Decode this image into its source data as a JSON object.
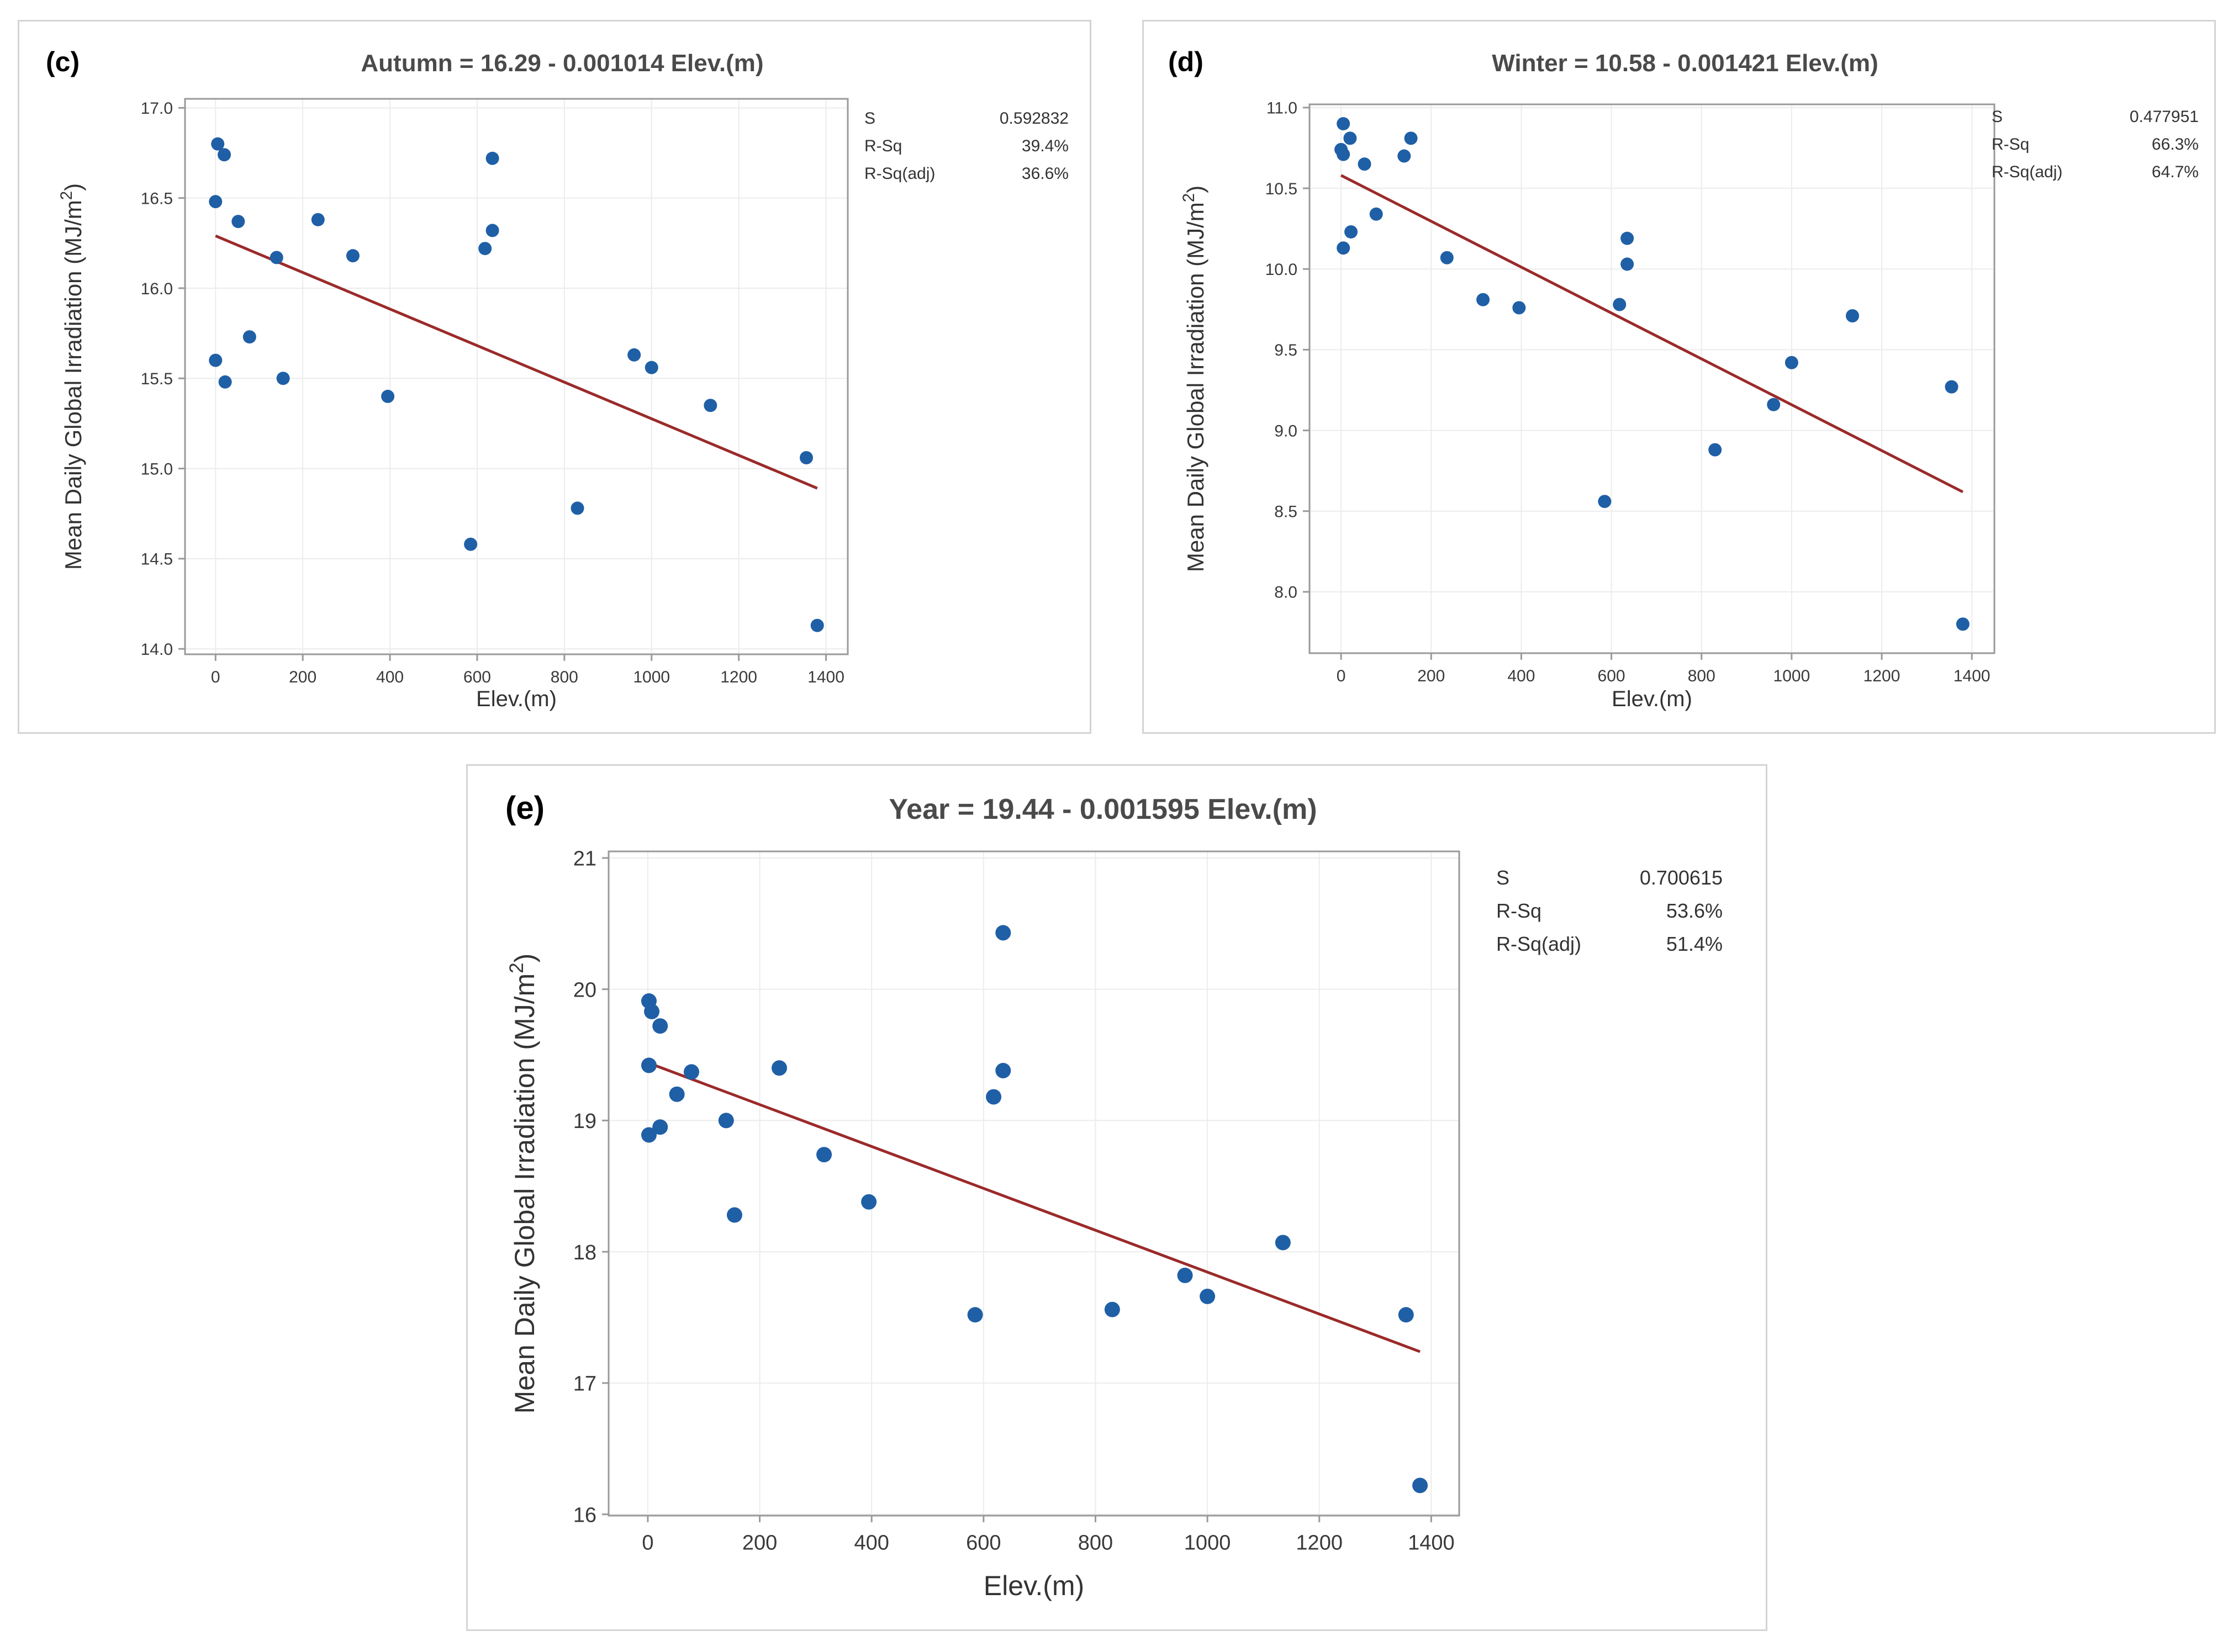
{
  "colors": {
    "point": "#1f5fa6",
    "fit_line": "#9b2a2a",
    "grid": "#ececec",
    "axis": "#9a9a9a"
  },
  "chart_data": [
    {
      "type": "scatter",
      "panel_label": "(c)",
      "title": "Autumn = 16.29 - 0.001014 Elev.(m)",
      "xlabel": "Elev.(m)",
      "ylabel": "Mean Daily Global Irradiation (MJ/m",
      "ylabel_sup": "2",
      "ylabel_end": ")",
      "xlim": [
        -70,
        1450
      ],
      "ylim": [
        13.97,
        17.05
      ],
      "xticks": [
        0,
        200,
        400,
        600,
        800,
        1000,
        1200,
        1400
      ],
      "yticks": [
        14.0,
        14.5,
        15.0,
        15.5,
        16.0,
        16.5,
        17.0
      ],
      "ytick_labels": [
        "14.0",
        "14.5",
        "15.0",
        "15.5",
        "16.0",
        "16.5",
        "17.0"
      ],
      "fit": {
        "intercept": 16.29,
        "slope": -0.001014,
        "x_range": [
          0,
          1380
        ]
      },
      "stats": [
        {
          "label": "S",
          "value": "0.592832"
        },
        {
          "label": "R-Sq",
          "value": "39.4%"
        },
        {
          "label": "R-Sq(adj)",
          "value": "36.6%"
        }
      ],
      "points": [
        [
          5,
          16.8
        ],
        [
          20,
          16.74
        ],
        [
          0,
          16.48
        ],
        [
          52,
          16.37
        ],
        [
          140,
          16.17
        ],
        [
          235,
          16.38
        ],
        [
          315,
          16.18
        ],
        [
          78,
          15.73
        ],
        [
          0,
          15.6
        ],
        [
          22,
          15.48
        ],
        [
          155,
          15.5
        ],
        [
          395,
          15.4
        ],
        [
          635,
          16.72
        ],
        [
          635,
          16.32
        ],
        [
          618,
          16.22
        ],
        [
          960,
          15.63
        ],
        [
          1000,
          15.56
        ],
        [
          1135,
          15.35
        ],
        [
          1355,
          15.06
        ],
        [
          830,
          14.78
        ],
        [
          585,
          14.58
        ],
        [
          1380,
          14.13
        ]
      ]
    },
    {
      "type": "scatter",
      "panel_label": "(d)",
      "title": "Winter = 10.58 - 0.001421 Elev.(m)",
      "xlabel": "Elev.(m)",
      "ylabel": "Mean Daily Global Irradiation (MJ/m",
      "ylabel_sup": "2",
      "ylabel_end": ")",
      "xlim": [
        -70,
        1450
      ],
      "ylim": [
        7.62,
        11.02
      ],
      "xticks": [
        0,
        200,
        400,
        600,
        800,
        1000,
        1200,
        1400
      ],
      "yticks": [
        8.0,
        8.5,
        9.0,
        9.5,
        10.0,
        10.5,
        11.0
      ],
      "ytick_labels": [
        "8.0",
        "8.5",
        "9.0",
        "9.5",
        "10.0",
        "10.5",
        "11.0"
      ],
      "fit": {
        "intercept": 10.58,
        "slope": -0.001421,
        "x_range": [
          0,
          1380
        ]
      },
      "stats": [
        {
          "label": "S",
          "value": "0.477951"
        },
        {
          "label": "R-Sq",
          "value": "66.3%"
        },
        {
          "label": "R-Sq(adj)",
          "value": "64.7%"
        }
      ],
      "points": [
        [
          5,
          10.9
        ],
        [
          20,
          10.81
        ],
        [
          0,
          10.74
        ],
        [
          5,
          10.71
        ],
        [
          52,
          10.65
        ],
        [
          140,
          10.7
        ],
        [
          155,
          10.81
        ],
        [
          78,
          10.34
        ],
        [
          22,
          10.23
        ],
        [
          5,
          10.13
        ],
        [
          235,
          10.07
        ],
        [
          315,
          9.81
        ],
        [
          395,
          9.76
        ],
        [
          635,
          10.19
        ],
        [
          635,
          10.03
        ],
        [
          618,
          9.78
        ],
        [
          585,
          8.56
        ],
        [
          830,
          8.88
        ],
        [
          960,
          9.16
        ],
        [
          1000,
          9.42
        ],
        [
          1135,
          9.71
        ],
        [
          1355,
          9.27
        ],
        [
          1380,
          7.8
        ]
      ]
    },
    {
      "type": "scatter",
      "panel_label": "(e)",
      "title": "Year = 19.44 - 0.001595 Elev.(m)",
      "xlabel": "Elev.(m)",
      "ylabel": "Mean Daily Global Irradiation (MJ/m",
      "ylabel_sup": "2",
      "ylabel_end": ")",
      "xlim": [
        -70,
        1450
      ],
      "ylim": [
        15.99,
        21.05
      ],
      "xticks": [
        0,
        200,
        400,
        600,
        800,
        1000,
        1200,
        1400
      ],
      "yticks": [
        16,
        17,
        18,
        19,
        20,
        21
      ],
      "ytick_labels": [
        "16",
        "17",
        "18",
        "19",
        "20",
        "21"
      ],
      "fit": {
        "intercept": 19.44,
        "slope": -0.001595,
        "x_range": [
          0,
          1380
        ]
      },
      "stats": [
        {
          "label": "S",
          "value": "0.700615"
        },
        {
          "label": "R-Sq",
          "value": "53.6%"
        },
        {
          "label": "R-Sq(adj)",
          "value": "51.4%"
        }
      ],
      "points": [
        [
          2,
          19.91
        ],
        [
          7,
          19.83
        ],
        [
          22,
          19.72
        ],
        [
          2,
          19.42
        ],
        [
          78,
          19.37
        ],
        [
          52,
          19.2
        ],
        [
          22,
          18.95
        ],
        [
          2,
          18.89
        ],
        [
          140,
          19.0
        ],
        [
          235,
          19.4
        ],
        [
          315,
          18.74
        ],
        [
          395,
          18.38
        ],
        [
          155,
          18.28
        ],
        [
          635,
          20.43
        ],
        [
          635,
          19.38
        ],
        [
          618,
          19.18
        ],
        [
          585,
          17.52
        ],
        [
          830,
          17.56
        ],
        [
          960,
          17.82
        ],
        [
          1000,
          17.66
        ],
        [
          1135,
          18.07
        ],
        [
          1355,
          17.52
        ],
        [
          1380,
          16.22
        ]
      ]
    }
  ]
}
